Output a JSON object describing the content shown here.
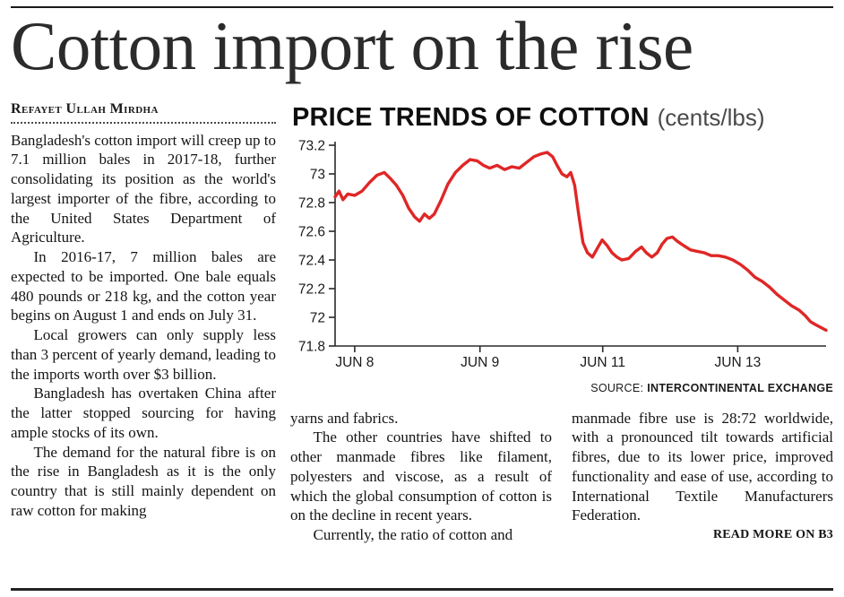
{
  "page": {
    "headline": "Cotton import on the rise"
  },
  "article": {
    "byline": "Refayet Ullah Mirdha",
    "left_paragraphs": [
      "Bangladesh's cotton import will creep up to 7.1 million bales in 2017-18, further consolidating its position as the world's largest importer of the fibre, according to the United States Department of Agriculture.",
      "In 2016-17, 7 million bales are expected to be imported. One bale equals 480 pounds or 218 kg, and the cotton year begins on August 1 and ends on July 31.",
      "Local growers can only supply less than 3 percent of yearly demand, leading to the imports worth over $3 billion.",
      "Bangladesh has overtaken China after the latter stopped sourcing for having ample stocks of its own.",
      "The demand for the natural fibre is on the rise in Bangladesh as it is the only country that is still mainly dependent on raw cotton for making"
    ],
    "bottom_left_paragraphs": [
      "yarns and fabrics.",
      "The other countries have shifted to other manmade fibres like filament, polyesters and viscose, as a result of which the global consumption of cotton is on the decline in recent years.",
      "Currently, the ratio of cotton and"
    ],
    "bottom_right_paragraphs": [
      "manmade fibre use is 28:72 worldwide, with a pronounced tilt towards artificial fibres, due to its lower price, improved functionality and ease of use, according to International Textile Manufacturers Federation."
    ],
    "read_more": "READ MORE ON B3"
  },
  "chart": {
    "heading": "PRICE TRENDS OF COTTON",
    "heading_suffix": "(cents/lbs)",
    "source_label": "SOURCE:",
    "source_value": "INTERCONTINENTAL EXCHANGE"
  },
  "chart_data": {
    "type": "line",
    "title": "PRICE TRENDS OF COTTON (cents/lbs)",
    "xlabel": "",
    "ylabel": "",
    "ylim": [
      71.8,
      73.2
    ],
    "y_ticks": [
      73.2,
      73.0,
      72.8,
      72.6,
      72.4,
      72.2,
      72.0,
      71.8
    ],
    "x_ticks": [
      {
        "pos": 0.04,
        "label": "JUN 8"
      },
      {
        "pos": 0.295,
        "label": "JUN 9"
      },
      {
        "pos": 0.545,
        "label": "JUN 11"
      },
      {
        "pos": 0.82,
        "label": "JUN 13"
      }
    ],
    "grid": false,
    "legend": false,
    "line_color": "#e02626",
    "axis_color": "#2a2a2a",
    "points": [
      [
        0.0,
        72.84
      ],
      [
        0.008,
        72.88
      ],
      [
        0.016,
        72.82
      ],
      [
        0.026,
        72.86
      ],
      [
        0.04,
        72.85
      ],
      [
        0.055,
        72.88
      ],
      [
        0.07,
        72.94
      ],
      [
        0.085,
        72.99
      ],
      [
        0.1,
        73.01
      ],
      [
        0.112,
        72.97
      ],
      [
        0.125,
        72.92
      ],
      [
        0.138,
        72.85
      ],
      [
        0.15,
        72.76
      ],
      [
        0.162,
        72.7
      ],
      [
        0.172,
        72.67
      ],
      [
        0.182,
        72.72
      ],
      [
        0.192,
        72.69
      ],
      [
        0.202,
        72.72
      ],
      [
        0.215,
        72.81
      ],
      [
        0.23,
        72.93
      ],
      [
        0.245,
        73.01
      ],
      [
        0.26,
        73.06
      ],
      [
        0.275,
        73.1
      ],
      [
        0.29,
        73.09
      ],
      [
        0.302,
        73.06
      ],
      [
        0.315,
        73.04
      ],
      [
        0.33,
        73.06
      ],
      [
        0.345,
        73.03
      ],
      [
        0.36,
        73.05
      ],
      [
        0.375,
        73.04
      ],
      [
        0.39,
        73.08
      ],
      [
        0.405,
        73.12
      ],
      [
        0.42,
        73.14
      ],
      [
        0.432,
        73.15
      ],
      [
        0.443,
        73.12
      ],
      [
        0.452,
        73.06
      ],
      [
        0.462,
        73.0
      ],
      [
        0.472,
        72.98
      ],
      [
        0.48,
        73.01
      ],
      [
        0.488,
        72.92
      ],
      [
        0.496,
        72.72
      ],
      [
        0.505,
        72.52
      ],
      [
        0.514,
        72.45
      ],
      [
        0.524,
        72.42
      ],
      [
        0.534,
        72.48
      ],
      [
        0.544,
        72.54
      ],
      [
        0.554,
        72.5
      ],
      [
        0.564,
        72.45
      ],
      [
        0.574,
        72.42
      ],
      [
        0.584,
        72.4
      ],
      [
        0.598,
        72.41
      ],
      [
        0.612,
        72.46
      ],
      [
        0.624,
        72.49
      ],
      [
        0.634,
        72.45
      ],
      [
        0.645,
        72.42
      ],
      [
        0.656,
        72.45
      ],
      [
        0.666,
        72.51
      ],
      [
        0.676,
        72.55
      ],
      [
        0.687,
        72.56
      ],
      [
        0.697,
        72.53
      ],
      [
        0.71,
        72.5
      ],
      [
        0.724,
        72.47
      ],
      [
        0.738,
        72.46
      ],
      [
        0.752,
        72.45
      ],
      [
        0.766,
        72.43
      ],
      [
        0.78,
        72.43
      ],
      [
        0.795,
        72.42
      ],
      [
        0.81,
        72.4
      ],
      [
        0.825,
        72.37
      ],
      [
        0.84,
        72.33
      ],
      [
        0.855,
        72.28
      ],
      [
        0.87,
        72.25
      ],
      [
        0.885,
        72.21
      ],
      [
        0.9,
        72.16
      ],
      [
        0.915,
        72.12
      ],
      [
        0.93,
        72.08
      ],
      [
        0.945,
        72.05
      ],
      [
        0.958,
        72.01
      ],
      [
        0.968,
        71.97
      ],
      [
        0.978,
        71.95
      ],
      [
        0.989,
        71.93
      ],
      [
        1.0,
        71.91
      ]
    ]
  }
}
